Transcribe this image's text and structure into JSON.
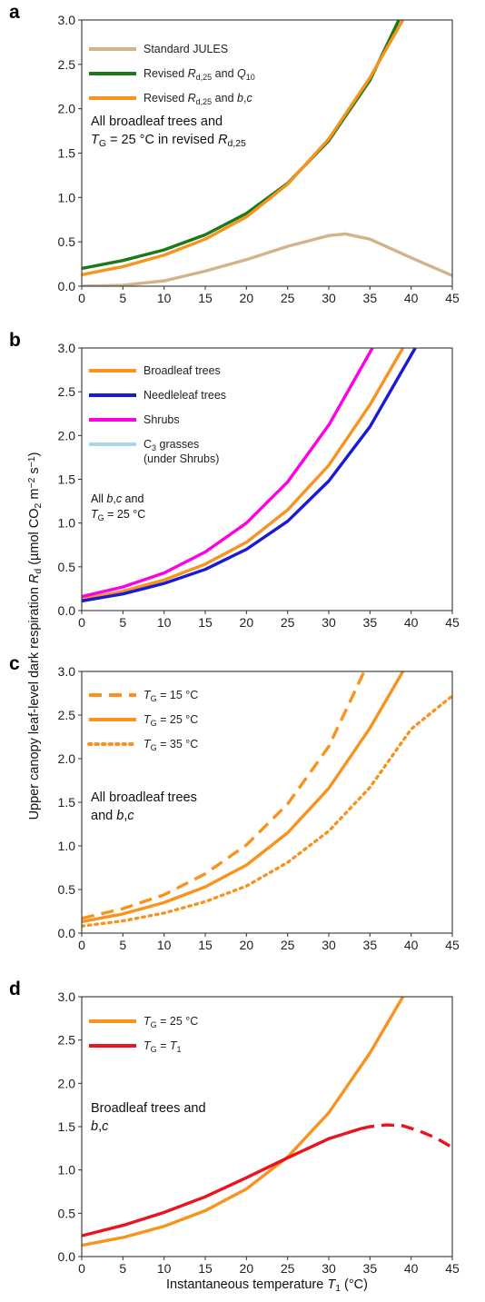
{
  "chart_data": [
    {
      "type": "line",
      "panel_label": "a",
      "xlim": [
        0,
        45
      ],
      "ylim": [
        0,
        3.0
      ],
      "xticks": [
        0,
        5,
        10,
        15,
        20,
        25,
        30,
        35,
        40,
        45
      ],
      "yticks": [
        "0.0",
        "0.5",
        "1.0",
        "1.5",
        "2.0",
        "2.5",
        "3.0"
      ],
      "legend_position": "top-left",
      "annotation": [
        "All broadleaf trees and",
        "T_G = 25 °C in revised R_d,25"
      ],
      "series": [
        {
          "name": "Standard JULES",
          "color": "#d2b48c",
          "style": "solid",
          "x": [
            0,
            5,
            10,
            15,
            20,
            25,
            30,
            32,
            35,
            40,
            45
          ],
          "y": [
            0.0,
            0.01,
            0.06,
            0.17,
            0.3,
            0.45,
            0.57,
            0.59,
            0.53,
            0.32,
            0.12
          ]
        },
        {
          "name": "Revised R_d,25 and Q_10",
          "color": "#1a7a1a",
          "style": "solid",
          "x": [
            0,
            5,
            10,
            15,
            20,
            25,
            30,
            35,
            38.5
          ],
          "y": [
            0.2,
            0.29,
            0.41,
            0.58,
            0.82,
            1.16,
            1.64,
            2.32,
            3.0
          ]
        },
        {
          "name": "Revised R_d,25 and b,c",
          "color": "#f7931e",
          "style": "solid",
          "x": [
            0,
            5,
            10,
            15,
            20,
            25,
            30,
            35,
            39
          ],
          "y": [
            0.13,
            0.22,
            0.35,
            0.53,
            0.78,
            1.15,
            1.66,
            2.35,
            3.0
          ]
        }
      ]
    },
    {
      "type": "line",
      "panel_label": "b",
      "xlim": [
        0,
        45
      ],
      "ylim": [
        0,
        3.0
      ],
      "xticks": [
        0,
        5,
        10,
        15,
        20,
        25,
        30,
        35,
        40,
        45
      ],
      "yticks": [
        "0.0",
        "0.5",
        "1.0",
        "1.5",
        "2.0",
        "2.5",
        "3.0"
      ],
      "legend_position": "top-left",
      "annotation": [
        "All b,c and",
        "T_G = 25 °C"
      ],
      "series": [
        {
          "name": "Broadleaf trees",
          "color": "#f7931e",
          "style": "solid",
          "x": [
            0,
            5,
            10,
            15,
            20,
            25,
            30,
            35,
            39
          ],
          "y": [
            0.13,
            0.22,
            0.35,
            0.53,
            0.78,
            1.15,
            1.66,
            2.35,
            3.0
          ]
        },
        {
          "name": "Needleleaf trees",
          "color": "#1a1ad6",
          "style": "solid",
          "x": [
            0,
            5,
            10,
            15,
            20,
            25,
            30,
            35,
            40.5
          ],
          "y": [
            0.11,
            0.19,
            0.31,
            0.47,
            0.7,
            1.02,
            1.48,
            2.1,
            3.0
          ]
        },
        {
          "name": "Shrubs",
          "color": "#ff00e6",
          "style": "solid",
          "x": [
            0,
            5,
            10,
            15,
            20,
            25,
            30,
            35.3
          ],
          "y": [
            0.16,
            0.27,
            0.43,
            0.67,
            1.0,
            1.47,
            2.12,
            3.0
          ]
        },
        {
          "name": "C3 grasses (under Shrubs)",
          "color": "#a8d8ea",
          "style": "solid",
          "x": [],
          "y": []
        }
      ]
    },
    {
      "type": "line",
      "panel_label": "c",
      "xlim": [
        0,
        45
      ],
      "ylim": [
        0,
        3.0
      ],
      "xticks": [
        0,
        5,
        10,
        15,
        20,
        25,
        30,
        35,
        40,
        45
      ],
      "yticks": [
        "0.0",
        "0.5",
        "1.0",
        "1.5",
        "2.0",
        "2.5",
        "3.0"
      ],
      "legend_position": "top-left",
      "annotation": [
        "All broadleaf trees",
        "and b,c"
      ],
      "series": [
        {
          "name": "T_G = 15 °C",
          "color": "#f7931e",
          "style": "dashed",
          "x": [
            0,
            5,
            10,
            15,
            20,
            25,
            30,
            34.3
          ],
          "y": [
            0.17,
            0.28,
            0.44,
            0.68,
            1.01,
            1.48,
            2.14,
            3.0
          ]
        },
        {
          "name": "T_G = 25 °C",
          "color": "#f7931e",
          "style": "solid",
          "x": [
            0,
            5,
            10,
            15,
            20,
            25,
            30,
            35,
            39
          ],
          "y": [
            0.13,
            0.22,
            0.35,
            0.53,
            0.78,
            1.15,
            1.66,
            2.35,
            3.0
          ]
        },
        {
          "name": "T_G = 35 °C",
          "color": "#f7931e",
          "style": "dotted",
          "x": [
            0,
            5,
            10,
            15,
            20,
            25,
            30,
            35,
            40,
            45
          ],
          "y": [
            0.08,
            0.14,
            0.23,
            0.36,
            0.54,
            0.81,
            1.17,
            1.67,
            2.34,
            2.72
          ]
        }
      ]
    },
    {
      "type": "line",
      "panel_label": "d",
      "xlim": [
        0,
        45
      ],
      "ylim": [
        0,
        3.0
      ],
      "xticks": [
        0,
        5,
        10,
        15,
        20,
        25,
        30,
        35,
        40,
        45
      ],
      "yticks": [
        "0.0",
        "0.5",
        "1.0",
        "1.5",
        "2.0",
        "2.5",
        "3.0"
      ],
      "legend_position": "top-left",
      "annotation": [
        "Broadleaf trees and",
        "b,c"
      ],
      "series": [
        {
          "name": "T_G = 25 °C",
          "color": "#f7931e",
          "style": "solid",
          "x": [
            0,
            5,
            10,
            15,
            20,
            25,
            30,
            35,
            39
          ],
          "y": [
            0.13,
            0.22,
            0.35,
            0.53,
            0.78,
            1.15,
            1.66,
            2.35,
            3.0
          ]
        },
        {
          "name": "T_G = T_1",
          "color": "#e8141e",
          "style": "solid",
          "x": [
            0,
            5,
            10,
            15,
            20,
            25,
            30,
            34
          ],
          "y": [
            0.24,
            0.36,
            0.51,
            0.69,
            0.91,
            1.14,
            1.36,
            1.48
          ]
        },
        {
          "name": "T_G = T_1 (dashed)",
          "color": "#e8141e",
          "style": "dashed",
          "x": [
            34,
            35,
            37,
            39,
            41,
            43,
            45
          ],
          "y": [
            1.48,
            1.5,
            1.52,
            1.51,
            1.45,
            1.37,
            1.26
          ]
        }
      ]
    }
  ],
  "labels": {
    "y_axis": "Upper canopy leaf-level dark respiration R_d (µmol CO2 m^-2 s^-1)",
    "x_axis": "Instantaneous temperature T_1 (°C)"
  }
}
